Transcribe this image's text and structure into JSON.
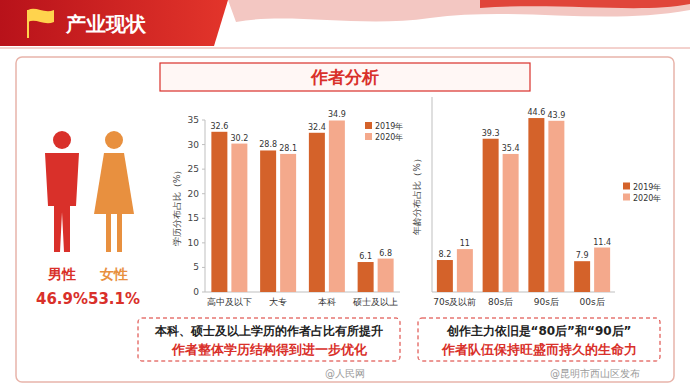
{
  "header": {
    "title": "产业现状"
  },
  "panel": {
    "title": "作者分析"
  },
  "gender": [
    {
      "label": "男性",
      "value": "46.9%",
      "color": "#d9302a"
    },
    {
      "label": "女性",
      "value": "53.1%",
      "color": "#e8903f"
    }
  ],
  "chart_data": [
    {
      "type": "bar",
      "y_label": "学历分布占比（%）",
      "categories": [
        "高中及以下",
        "大专",
        "本科",
        "硕士及以上"
      ],
      "series": [
        {
          "name": "2019年",
          "color": "#d4622a",
          "values": [
            32.6,
            28.8,
            32.4,
            6.1
          ]
        },
        {
          "name": "2020年",
          "color": "#f4a98c",
          "values": [
            30.2,
            28.1,
            34.9,
            6.8
          ]
        }
      ],
      "ylim": [
        0,
        35
      ],
      "yticks": [
        0,
        5,
        10,
        15,
        20,
        25,
        30,
        35
      ],
      "grid": false,
      "data_labels": true,
      "legend": "top-right"
    },
    {
      "type": "bar",
      "y_label": "年龄分布占比（%）",
      "categories": [
        "70s及以前",
        "80s后",
        "90s后",
        "00s后"
      ],
      "series": [
        {
          "name": "2019年",
          "color": "#d4622a",
          "values": [
            8.2,
            39.3,
            44.6,
            7.9
          ]
        },
        {
          "name": "2020年",
          "color": "#f4a98c",
          "values": [
            11,
            35.4,
            43.9,
            11.4
          ]
        }
      ],
      "ylim": [
        0,
        50
      ],
      "grid": false,
      "data_labels": true,
      "legend": "right",
      "tick_labels": "x"
    }
  ],
  "captions": [
    {
      "lines": [
        "本科、硕士及以上学历的作者占比有所提升",
        "作者整体学历结构得到进一步优化"
      ]
    },
    {
      "lines": [
        "创作主力依旧是“80后”和“90后”",
        "作者队伍保持旺盛而持久的生命力"
      ]
    }
  ],
  "watermarks": [
    "@人民网",
    "@昆明市西山区发布"
  ]
}
